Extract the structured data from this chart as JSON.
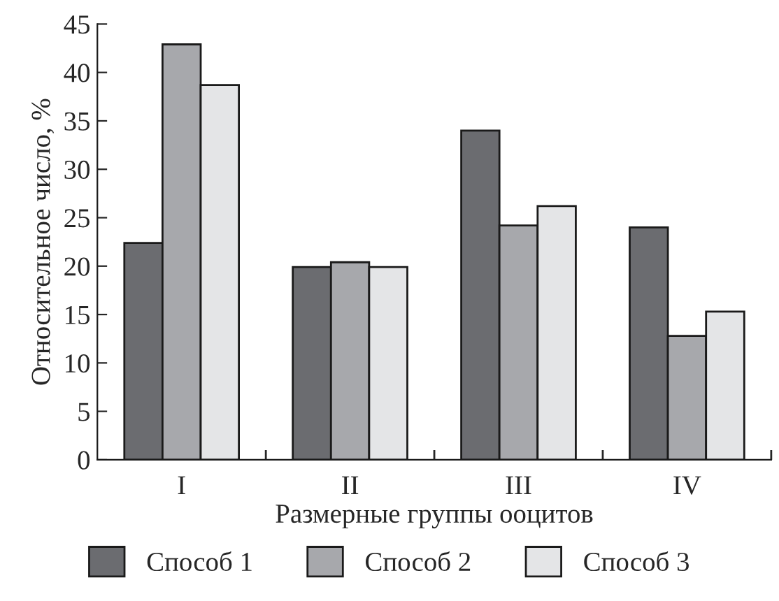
{
  "chart_data": {
    "type": "bar",
    "xlabel": "Размерные группы ооцитов",
    "ylabel": "Относительное число, %",
    "categories": [
      "I",
      "II",
      "III",
      "IV"
    ],
    "series": [
      {
        "name": "Способ 1",
        "color": "#6b6c70",
        "values": [
          22.4,
          19.9,
          34.0,
          24.0
        ]
      },
      {
        "name": "Способ 2",
        "color": "#a7a8ac",
        "values": [
          42.9,
          20.4,
          24.2,
          12.8
        ]
      },
      {
        "name": "Способ 3",
        "color": "#e4e5e7",
        "values": [
          38.7,
          19.9,
          26.2,
          15.3
        ]
      }
    ],
    "ylim": [
      0,
      45
    ],
    "yticks": [
      0,
      5,
      10,
      15,
      20,
      25,
      30,
      35,
      40,
      45
    ],
    "grid": false,
    "legend": "bottom"
  }
}
